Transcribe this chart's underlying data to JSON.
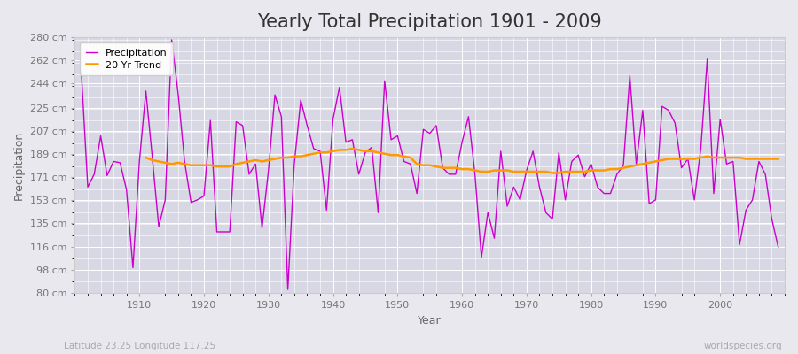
{
  "title": "Yearly Total Precipitation 1901 - 2009",
  "xlabel": "Year",
  "ylabel": "Precipitation",
  "subtitle_left": "Latitude 23.25 Longitude 117.25",
  "subtitle_right": "worldspecies.org",
  "years": [
    1901,
    1902,
    1903,
    1904,
    1905,
    1906,
    1907,
    1908,
    1909,
    1910,
    1911,
    1912,
    1913,
    1914,
    1915,
    1916,
    1917,
    1918,
    1919,
    1920,
    1921,
    1922,
    1923,
    1924,
    1925,
    1926,
    1927,
    1928,
    1929,
    1930,
    1931,
    1932,
    1933,
    1934,
    1935,
    1936,
    1937,
    1938,
    1939,
    1940,
    1941,
    1942,
    1943,
    1944,
    1945,
    1946,
    1947,
    1948,
    1949,
    1950,
    1951,
    1952,
    1953,
    1954,
    1955,
    1956,
    1957,
    1958,
    1959,
    1960,
    1961,
    1962,
    1963,
    1964,
    1965,
    1966,
    1967,
    1968,
    1969,
    1970,
    1971,
    1972,
    1973,
    1974,
    1975,
    1976,
    1977,
    1978,
    1979,
    1980,
    1981,
    1982,
    1983,
    1984,
    1985,
    1986,
    1987,
    1988,
    1989,
    1990,
    1991,
    1992,
    1993,
    1994,
    1995,
    1996,
    1997,
    1998,
    1999,
    2000,
    2001,
    2002,
    2003,
    2004,
    2005,
    2006,
    2007,
    2008,
    2009
  ],
  "precip": [
    253,
    163,
    173,
    203,
    172,
    183,
    182,
    161,
    100,
    183,
    238,
    186,
    132,
    153,
    278,
    236,
    183,
    151,
    153,
    156,
    215,
    128,
    128,
    128,
    214,
    211,
    173,
    181,
    131,
    176,
    235,
    218,
    83,
    181,
    231,
    211,
    193,
    191,
    145,
    216,
    241,
    198,
    200,
    173,
    190,
    194,
    143,
    246,
    200,
    203,
    183,
    181,
    158,
    208,
    205,
    211,
    178,
    173,
    173,
    198,
    218,
    173,
    108,
    143,
    123,
    191,
    148,
    163,
    153,
    176,
    191,
    163,
    143,
    138,
    190,
    153,
    183,
    188,
    171,
    181,
    163,
    158,
    158,
    173,
    180,
    250,
    181,
    223,
    150,
    153,
    226,
    223,
    213,
    178,
    185,
    153,
    193,
    263,
    158,
    216,
    181,
    183,
    118,
    145,
    153,
    183,
    173,
    138,
    116
  ],
  "trend_years": [
    1911,
    1912,
    1913,
    1914,
    1915,
    1916,
    1917,
    1918,
    1919,
    1920,
    1921,
    1922,
    1923,
    1924,
    1925,
    1926,
    1927,
    1928,
    1929,
    1930,
    1931,
    1932,
    1933,
    1934,
    1935,
    1936,
    1937,
    1938,
    1939,
    1940,
    1941,
    1942,
    1943,
    1944,
    1945,
    1946,
    1947,
    1948,
    1949,
    1950,
    1951,
    1952,
    1953,
    1954,
    1955,
    1956,
    1957,
    1958,
    1959,
    1960,
    1961,
    1962,
    1963,
    1964,
    1965,
    1966,
    1967,
    1968,
    1969,
    1970,
    1971,
    1972,
    1973,
    1974,
    1975,
    1976,
    1977,
    1978,
    1979,
    1980,
    1981,
    1982,
    1983,
    1984,
    1985,
    1986,
    1987,
    1988,
    1989,
    1990,
    1991,
    1992,
    1993,
    1994,
    1995,
    1996,
    1997,
    1998,
    1999,
    2000,
    2001,
    2002,
    2003,
    2004,
    2005,
    2006,
    2007,
    2008,
    2009
  ],
  "trend": [
    186,
    184,
    183,
    182,
    181,
    182,
    181,
    180,
    180,
    180,
    180,
    179,
    179,
    179,
    181,
    182,
    183,
    184,
    183,
    184,
    185,
    186,
    186,
    187,
    187,
    188,
    189,
    190,
    190,
    191,
    192,
    192,
    193,
    192,
    191,
    191,
    190,
    189,
    188,
    188,
    187,
    186,
    181,
    180,
    180,
    179,
    178,
    178,
    178,
    177,
    177,
    176,
    175,
    175,
    176,
    176,
    176,
    175,
    175,
    175,
    175,
    175,
    175,
    174,
    174,
    175,
    175,
    175,
    175,
    176,
    176,
    176,
    177,
    177,
    178,
    179,
    180,
    181,
    182,
    183,
    184,
    185,
    185,
    185,
    185,
    185,
    186,
    187,
    186,
    186,
    186,
    186,
    186,
    185,
    185,
    185,
    185,
    185,
    185
  ],
  "ylim": [
    80,
    280
  ],
  "yticks": [
    80,
    98,
    116,
    135,
    153,
    171,
    189,
    207,
    225,
    244,
    262,
    280
  ],
  "ytick_labels": [
    "80 cm",
    "98 cm",
    "116 cm",
    "135 cm",
    "153 cm",
    "171 cm",
    "189 cm",
    "207 cm",
    "225 cm",
    "244 cm",
    "262 cm",
    "280 cm"
  ],
  "xlim": [
    1900,
    2010
  ],
  "xticks": [
    1910,
    1920,
    1930,
    1940,
    1950,
    1960,
    1970,
    1980,
    1990,
    2000
  ],
  "precip_color": "#cc00cc",
  "trend_color": "#ff9900",
  "bg_color": "#e8e8ee",
  "plot_bg_color": "#d8d8e4",
  "grid_color": "#ffffff",
  "title_fontsize": 15,
  "axis_label_fontsize": 9,
  "tick_fontsize": 8,
  "legend_fontsize": 8
}
